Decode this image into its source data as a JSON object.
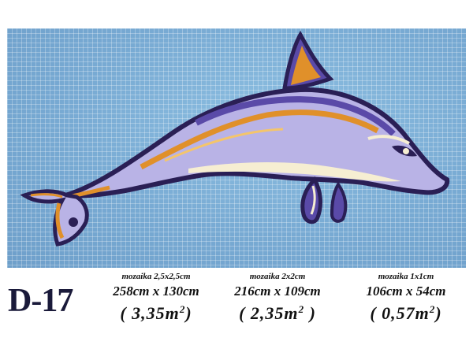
{
  "product": {
    "code": "D-17",
    "image_subject": "dolphin-mosaic"
  },
  "specs": [
    {
      "tile": "mozaika 2,5x2,5cm",
      "dims": "258cm x 130cm",
      "area_open": "( 3,35m",
      "area_sup": "2",
      "area_close": ")"
    },
    {
      "tile": "mozaika 2x2cm",
      "dims": "216cm x 109cm",
      "area_open": "( 2,35m",
      "area_sup": "2",
      "area_close": " )"
    },
    {
      "tile": "mozaika 1x1cm",
      "dims": "106cm x 54cm",
      "area_open": "( 0,57m",
      "area_sup": "2",
      "area_close": ")"
    }
  ],
  "colors": {
    "water": "#7fb0d6",
    "dolphin_dark": "#2a1f55",
    "dolphin_purple": "#5a4aa8",
    "dolphin_lilac": "#b9b3e6",
    "dolphin_orange": "#e0902a",
    "dolphin_cream": "#f6eed2",
    "code_text": "#1a1a3a"
  }
}
